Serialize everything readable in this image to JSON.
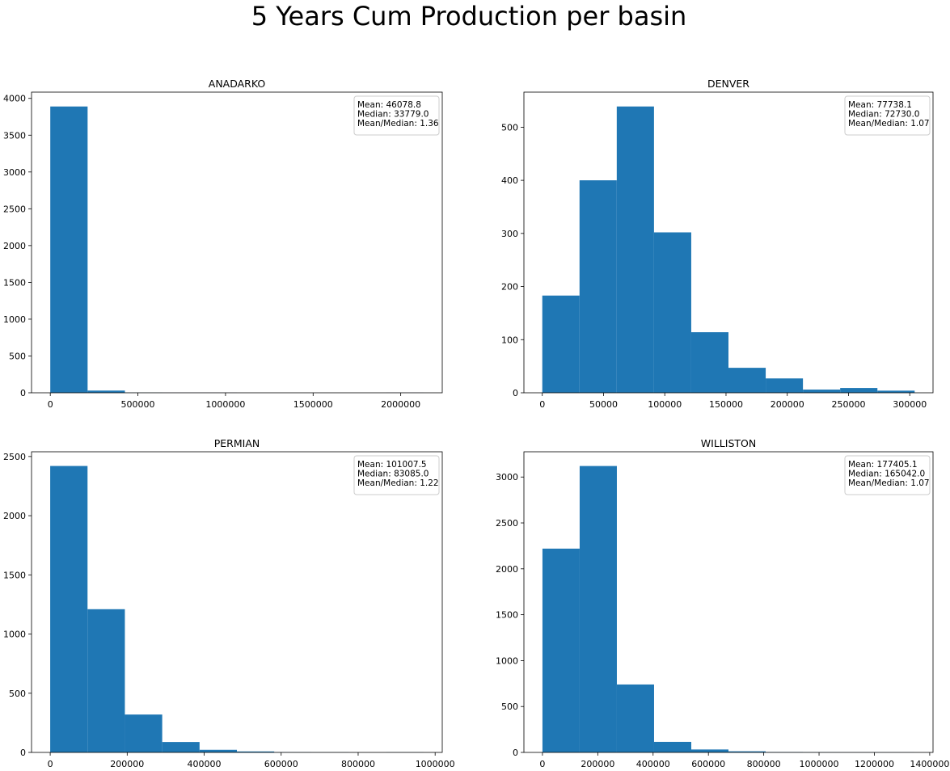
{
  "figure": {
    "title": "5 Years Cum Production per basin",
    "bar_color": "#1f77b4"
  },
  "chart_data": [
    {
      "type": "bar",
      "title": "ANADARKO",
      "bin_edges": [
        0,
        213000,
        426000,
        639000,
        852000,
        1065000,
        1278000,
        1491000,
        1704000,
        1917000,
        2130000
      ],
      "counts": [
        3890,
        30,
        2,
        1,
        1,
        0,
        0,
        0,
        0,
        1
      ],
      "xlim": [
        -107000,
        2237000
      ],
      "ylim": [
        0,
        4085
      ],
      "xticks": [
        0,
        500000,
        1000000,
        1500000,
        2000000
      ],
      "xtick_labels": [
        "0",
        "500000",
        "1000000",
        "1500000",
        "2000000"
      ],
      "yticks": [
        0,
        500,
        1000,
        1500,
        2000,
        2500,
        3000,
        3500,
        4000
      ],
      "ytick_labels": [
        "0",
        "500",
        "1000",
        "1500",
        "2000",
        "2500",
        "3000",
        "3500",
        "4000"
      ],
      "stats": [
        "Mean: 46078.8",
        "Median: 33779.0",
        "Mean/Median: 1.36"
      ],
      "legend_loc": "upper right",
      "grid": false
    },
    {
      "type": "bar",
      "title": "DENVER",
      "bin_edges": [
        0,
        30400,
        60800,
        91200,
        121600,
        152000,
        182400,
        212800,
        243200,
        273600,
        304000
      ],
      "counts": [
        183,
        400,
        539,
        302,
        114,
        47,
        27,
        6,
        9,
        4
      ],
      "xlim": [
        -15000,
        319000
      ],
      "ylim": [
        0,
        566
      ],
      "xticks": [
        0,
        50000,
        100000,
        150000,
        200000,
        250000,
        300000
      ],
      "xtick_labels": [
        "0",
        "50000",
        "100000",
        "150000",
        "200000",
        "250000",
        "300000"
      ],
      "yticks": [
        0,
        100,
        200,
        300,
        400,
        500
      ],
      "ytick_labels": [
        "0",
        "100",
        "200",
        "300",
        "400",
        "500"
      ],
      "stats": [
        "Mean: 77738.1",
        "Median: 72730.0",
        "Mean/Median: 1.07"
      ],
      "legend_loc": "upper right",
      "grid": false
    },
    {
      "type": "bar",
      "title": "PERMIAN",
      "bin_edges": [
        0,
        97000,
        194000,
        291000,
        388000,
        485000,
        582000,
        679000,
        776000,
        873000,
        970000
      ],
      "counts": [
        2420,
        1210,
        320,
        88,
        22,
        8,
        2,
        1,
        0,
        1
      ],
      "xlim": [
        -48500,
        1018500
      ],
      "ylim": [
        0,
        2540
      ],
      "xticks": [
        0,
        200000,
        400000,
        600000,
        800000,
        1000000
      ],
      "xtick_labels": [
        "0",
        "200000",
        "400000",
        "600000",
        "800000",
        "1000000"
      ],
      "yticks": [
        0,
        500,
        1000,
        1500,
        2000,
        2500
      ],
      "ytick_labels": [
        "0",
        "500",
        "1000",
        "1500",
        "2000",
        "2500"
      ],
      "stats": [
        "Mean: 101007.5",
        "Median: 83085.0",
        "Mean/Median: 1.22"
      ],
      "legend_loc": "upper right",
      "grid": false
    },
    {
      "type": "bar",
      "title": "WILLISTON",
      "bin_edges": [
        0,
        134500,
        269000,
        403500,
        538000,
        672500,
        807000,
        941500,
        1076000,
        1210500,
        1345000
      ],
      "counts": [
        2220,
        3120,
        740,
        115,
        32,
        12,
        4,
        2,
        1,
        1
      ],
      "xlim": [
        -67000,
        1412000
      ],
      "ylim": [
        0,
        3275
      ],
      "xticks": [
        0,
        200000,
        400000,
        600000,
        800000,
        1000000,
        1200000,
        1400000
      ],
      "xtick_labels": [
        "0",
        "200000",
        "400000",
        "600000",
        "800000",
        "1000000",
        "1200000",
        "1400000"
      ],
      "yticks": [
        0,
        500,
        1000,
        1500,
        2000,
        2500,
        3000
      ],
      "ytick_labels": [
        "0",
        "500",
        "1000",
        "1500",
        "2000",
        "2500",
        "3000"
      ],
      "stats": [
        "Mean: 177405.1",
        "Median: 165042.0",
        "Mean/Median: 1.07"
      ],
      "legend_loc": "upper right",
      "grid": false
    }
  ]
}
